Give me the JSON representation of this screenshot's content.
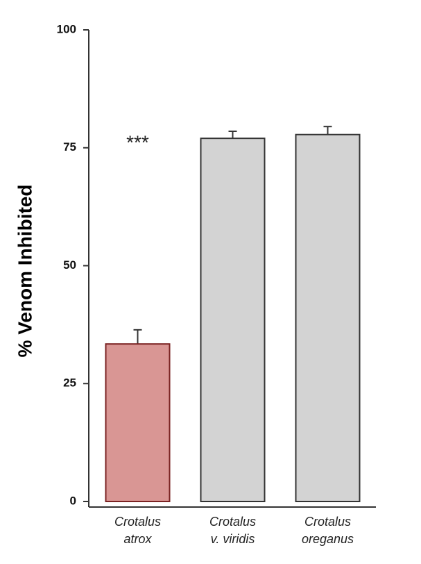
{
  "chart_data": {
    "type": "bar",
    "ylabel": "% Venom Inhibited",
    "categories": [
      [
        "Crotalus",
        "atrox"
      ],
      [
        "Crotalus",
        "v. viridis"
      ],
      [
        "Crotalus",
        "oreganus"
      ]
    ],
    "values": [
      33.4,
      77.0,
      77.8
    ],
    "errors": [
      3.0,
      1.5,
      1.7
    ],
    "colors": [
      "#d99694",
      "#d3d3d3",
      "#d3d3d3"
    ],
    "annotations": [
      {
        "text": "***",
        "category": 0
      }
    ],
    "ylim": [
      0,
      100
    ],
    "yticks": [
      0,
      25,
      50,
      75,
      100
    ]
  }
}
